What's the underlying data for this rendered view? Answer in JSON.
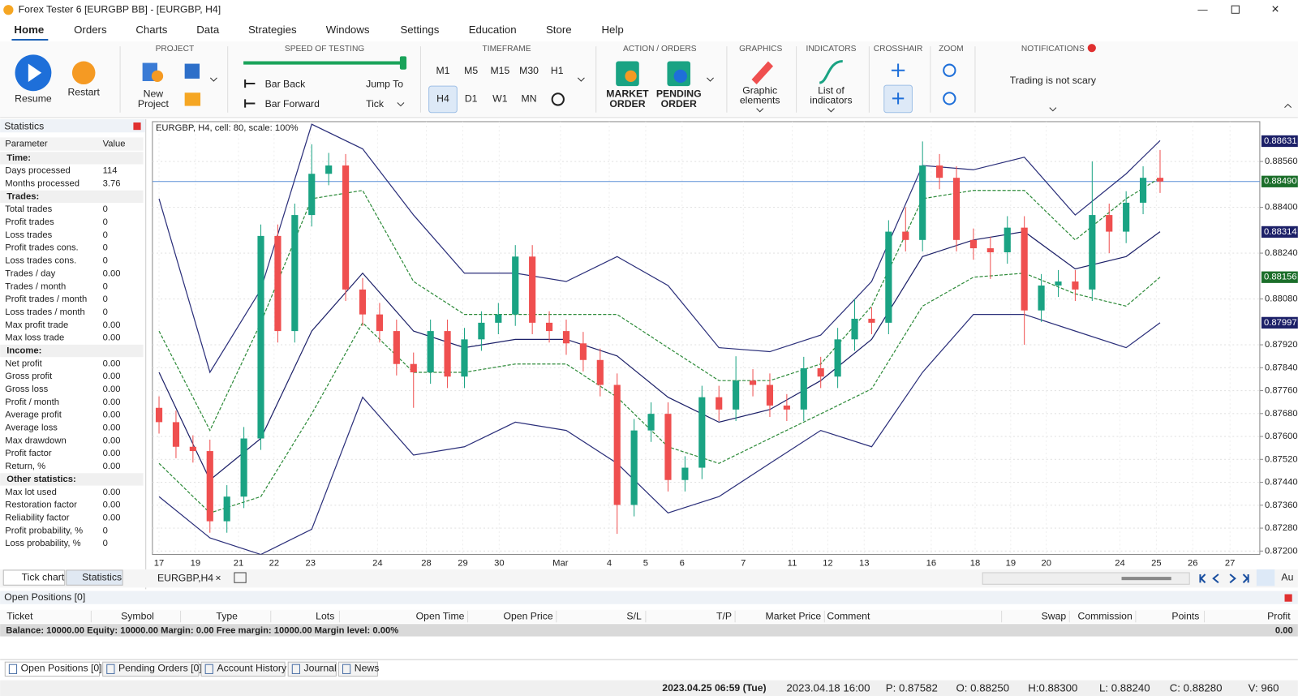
{
  "title_bar": "Forex Tester 6  [EURGBP BB] - [EURGBP, H4]",
  "menu": [
    "Home",
    "Orders",
    "Charts",
    "Data",
    "Strategies",
    "Windows",
    "Settings",
    "Education",
    "Store",
    "Help"
  ],
  "ribbon": {
    "resume": "Resume",
    "restart": "Restart",
    "project": "PROJECT",
    "new_project": [
      "New",
      "Project"
    ],
    "speed": "SPEED OF TESTING",
    "bar_back": "Bar Back",
    "bar_forward": "Bar Forward",
    "jump_to": "Jump To",
    "tick": "Tick",
    "timeframe": "TIMEFRAME",
    "timeframes": [
      "M1",
      "M5",
      "M15",
      "M30",
      "H1",
      "H4",
      "D1",
      "W1",
      "MN"
    ],
    "action": "ACTION / ORDERS",
    "market_order": [
      "MARKET",
      "ORDER"
    ],
    "pending_order": [
      "PENDING",
      "ORDER"
    ],
    "graphics": "GRAPHICS",
    "graphic_elements": [
      "Graphic",
      "elements"
    ],
    "indicators": "INDICATORS",
    "list_of_indicators": [
      "List of",
      "indicators"
    ],
    "crosshair": "CROSSHAIR",
    "zoom": "ZOOM",
    "notifications": "NOTIFICATIONS",
    "notification_text": "Trading is not scary"
  },
  "statistics": {
    "title": "Statistics",
    "header": [
      "Parameter",
      "Value"
    ],
    "rows": [
      [
        "Time:"
      ],
      [
        "Days processed",
        "114"
      ],
      [
        "Months processed",
        "3.76"
      ],
      [
        "Trades:"
      ],
      [
        "Total trades",
        "0"
      ],
      [
        "Profit trades",
        "0"
      ],
      [
        "Loss trades",
        "0"
      ],
      [
        "Profit trades cons.",
        "0"
      ],
      [
        "Loss trades cons.",
        "0"
      ],
      [
        "Trades / day",
        "0.00"
      ],
      [
        "Trades / month",
        "0"
      ],
      [
        "Profit trades / month",
        "0"
      ],
      [
        "Loss trades / month",
        "0"
      ],
      [
        "Max profit trade",
        "0.00"
      ],
      [
        "Max loss trade",
        "0.00"
      ],
      [
        "Income:"
      ],
      [
        "Net profit",
        "0.00"
      ],
      [
        "Gross profit",
        "0.00"
      ],
      [
        "Gross loss",
        "0.00"
      ],
      [
        "Profit / month",
        "0.00"
      ],
      [
        "Average profit",
        "0.00"
      ],
      [
        "Average loss",
        "0.00"
      ],
      [
        "Max drawdown",
        "0.00"
      ],
      [
        "Profit factor",
        "0.00"
      ],
      [
        "Return, %",
        "0.00"
      ],
      [
        "Other statistics:"
      ],
      [
        "Max lot used",
        "0.00"
      ],
      [
        "Restoration factor",
        "0.00"
      ],
      [
        "Reliability factor",
        "0.00"
      ],
      [
        "Profit probability, %",
        "0"
      ],
      [
        "Loss probability, %",
        "0"
      ]
    ]
  },
  "chart_data": {
    "type": "candlestick",
    "title": "EURGBP, H4, cell: 80, scale: 100%",
    "up_color": "#1aa383",
    "down_color": "#ef4f4f",
    "ohlc": [
      [
        0.877,
        0.8774,
        0.8761,
        0.8765
      ],
      [
        0.8765,
        0.8769,
        0.87524,
        0.87564
      ],
      [
        0.87564,
        0.87604,
        0.87509,
        0.87549
      ],
      [
        0.87549,
        0.87589,
        0.87264,
        0.87304
      ],
      [
        0.87304,
        0.8743,
        0.87264,
        0.8739
      ],
      [
        0.8739,
        0.87633,
        0.8735,
        0.87593
      ],
      [
        0.87593,
        0.8834,
        0.87553,
        0.883
      ],
      [
        0.883,
        0.8834,
        0.87928,
        0.87968
      ],
      [
        0.87968,
        0.88413,
        0.87928,
        0.88373
      ],
      [
        0.88373,
        0.8862,
        0.88333,
        0.88517
      ],
      [
        0.88517,
        0.8859,
        0.88477,
        0.88546
      ],
      [
        0.88546,
        0.88586,
        0.88073,
        0.88113
      ],
      [
        0.88113,
        0.88153,
        0.87986,
        0.88026
      ],
      [
        0.88026,
        0.88066,
        0.87928,
        0.87968
      ],
      [
        0.87968,
        0.88008,
        0.87813,
        0.87853
      ],
      [
        0.87853,
        0.87893,
        0.877,
        0.87824
      ],
      [
        0.87824,
        0.88008,
        0.87784,
        0.87968
      ],
      [
        0.87968,
        0.88008,
        0.87769,
        0.87809
      ],
      [
        0.87809,
        0.87979,
        0.87769,
        0.87939
      ],
      [
        0.87939,
        0.88037,
        0.87899,
        0.87997
      ],
      [
        0.87997,
        0.88066,
        0.87957,
        0.88026
      ],
      [
        0.88026,
        0.88268,
        0.87986,
        0.88228
      ],
      [
        0.88228,
        0.88268,
        0.87957,
        0.87997
      ],
      [
        0.87997,
        0.88037,
        0.87928,
        0.87968
      ],
      [
        0.87968,
        0.88008,
        0.87885,
        0.87925
      ],
      [
        0.87925,
        0.87965,
        0.87827,
        0.87867
      ],
      [
        0.87867,
        0.87907,
        0.8774,
        0.8778
      ],
      [
        0.8778,
        0.8782,
        0.8726,
        0.87361
      ],
      [
        0.87361,
        0.87661,
        0.87321,
        0.87621
      ],
      [
        0.87621,
        0.87719,
        0.87581,
        0.87679
      ],
      [
        0.87679,
        0.87719,
        0.87408,
        0.87448
      ],
      [
        0.87448,
        0.87531,
        0.87408,
        0.87491
      ],
      [
        0.87491,
        0.87777,
        0.87451,
        0.87737
      ],
      [
        0.87737,
        0.87777,
        0.87654,
        0.87694
      ],
      [
        0.87694,
        0.8788,
        0.87654,
        0.87795
      ],
      [
        0.87795,
        0.87835,
        0.8774,
        0.8778
      ],
      [
        0.8778,
        0.8782,
        0.87668,
        0.87708
      ],
      [
        0.87708,
        0.87748,
        0.87654,
        0.87694
      ],
      [
        0.87694,
        0.87878,
        0.87654,
        0.87838
      ],
      [
        0.87838,
        0.87878,
        0.87769,
        0.87809
      ],
      [
        0.87809,
        0.87979,
        0.87769,
        0.87939
      ],
      [
        0.87939,
        0.8808,
        0.87899,
        0.88011
      ],
      [
        0.88011,
        0.88051,
        0.87957,
        0.87997
      ],
      [
        0.87997,
        0.88355,
        0.87957,
        0.88315
      ],
      [
        0.88315,
        0.884,
        0.88246,
        0.88286
      ],
      [
        0.88286,
        0.8863,
        0.88246,
        0.88546
      ],
      [
        0.88546,
        0.88586,
        0.88463,
        0.88503
      ],
      [
        0.88503,
        0.88543,
        0.88246,
        0.88286
      ],
      [
        0.88286,
        0.88326,
        0.88217,
        0.88257
      ],
      [
        0.88257,
        0.88297,
        0.8815,
        0.88243
      ],
      [
        0.88243,
        0.88369,
        0.88203,
        0.88329
      ],
      [
        0.88329,
        0.88369,
        0.8792,
        0.8804
      ],
      [
        0.8804,
        0.88167,
        0.88,
        0.88127
      ],
      [
        0.88127,
        0.88181,
        0.88087,
        0.88141
      ],
      [
        0.88141,
        0.88181,
        0.88073,
        0.88113
      ],
      [
        0.88113,
        0.8856,
        0.88073,
        0.88373
      ],
      [
        0.88373,
        0.88413,
        0.8824,
        0.88315
      ],
      [
        0.88315,
        0.88456,
        0.88275,
        0.88416
      ],
      [
        0.88416,
        0.88543,
        0.88376,
        0.88503
      ],
      [
        0.88503,
        0.886,
        0.8845,
        0.8849
      ]
    ],
    "band_x": [
      0,
      3,
      6,
      9,
      12,
      15,
      18,
      21,
      24,
      27,
      30,
      33,
      36,
      39,
      42,
      45,
      48,
      51,
      54,
      57,
      59
    ],
    "bands": [
      {
        "color": "#2b2f7a",
        "dashed": false,
        "values": [
          0.8843,
          0.87824,
          0.88113,
          0.8869,
          0.88604,
          0.88373,
          0.8817,
          0.8817,
          0.88141,
          0.88228,
          0.88127,
          0.8791,
          0.87896,
          0.87954,
          0.88141,
          0.88546,
          0.88531,
          0.88575,
          0.88373,
          0.88517,
          0.88633
        ]
      },
      {
        "color": "#1c2068",
        "dashed": false,
        "values": [
          0.87824,
          0.87448,
          0.87593,
          0.87968,
          0.8817,
          0.87968,
          0.8791,
          0.87939,
          0.87939,
          0.87881,
          0.87737,
          0.8765,
          0.87694,
          0.87795,
          0.87939,
          0.88228,
          0.88286,
          0.88315,
          0.88185,
          0.88228,
          0.88315
        ]
      },
      {
        "color": "#2b2f7a",
        "dashed": false,
        "values": [
          0.8739,
          0.87246,
          0.87188,
          0.87276,
          0.87737,
          0.87535,
          0.87564,
          0.8765,
          0.87621,
          0.87506,
          0.87333,
          0.8739,
          0.87506,
          0.87621,
          0.87564,
          0.87824,
          0.88026,
          0.88026,
          0.87968,
          0.8791,
          0.87997
        ]
      },
      {
        "color": "#2e8b3a",
        "dashed": true,
        "values": [
          0.87968,
          0.87621,
          0.87997,
          0.8843,
          0.88459,
          0.88141,
          0.88026,
          0.88026,
          0.88026,
          0.88026,
          0.8791,
          0.87795,
          0.87795,
          0.87853,
          0.88055,
          0.8843,
          0.88459,
          0.88459,
          0.88286,
          0.8843,
          0.88503
        ]
      },
      {
        "color": "#2e8b3a",
        "dashed": true,
        "values": [
          0.87506,
          0.87333,
          0.8739,
          0.87679,
          0.87997,
          0.87824,
          0.87824,
          0.87853,
          0.87853,
          0.87737,
          0.87564,
          0.87506,
          0.87593,
          0.87679,
          0.87766,
          0.88055,
          0.88156,
          0.8817,
          0.88098,
          0.88055,
          0.88156
        ]
      }
    ],
    "ylim": [
      0.87188,
      0.88699
    ],
    "yticks": [
      {
        "value": 0.8856,
        "label": "0.88560"
      },
      {
        "value": 0.884,
        "label": "0.88400"
      },
      {
        "value": 0.8824,
        "label": "0.88240"
      },
      {
        "value": 0.8808,
        "label": "0.88080"
      },
      {
        "value": 0.8792,
        "label": "0.87920"
      },
      {
        "value": 0.8784,
        "label": "0.87840"
      },
      {
        "value": 0.8776,
        "label": "0.87760"
      },
      {
        "value": 0.8768,
        "label": "0.87680"
      },
      {
        "value": 0.876,
        "label": "0.87600"
      },
      {
        "value": 0.8752,
        "label": "0.87520"
      },
      {
        "value": 0.8744,
        "label": "0.87440"
      },
      {
        "value": 0.8736,
        "label": "0.87360"
      },
      {
        "value": 0.8728,
        "label": "0.87280"
      },
      {
        "value": 0.872,
        "label": "0.87200"
      }
    ],
    "price_tags": [
      0.88631,
      {
        "value": 0.8849,
        "label": "0.88490"
      },
      0.88314,
      0.88156,
      0.87997
    ],
    "price_tag_colors": [
      "#1c2068",
      "#1b6e2a",
      "#1c2068",
      "#1b6e2a",
      "#1c2068"
    ],
    "current_price_tag": 1,
    "grid": true,
    "x_labels": [
      "17",
      "19",
      "21",
      "22",
      "23",
      "24",
      "28",
      "29",
      "30",
      "Mar",
      "4",
      "5",
      "6",
      "7",
      "11",
      "12",
      "13",
      "16",
      "18",
      "19",
      "20",
      "24",
      "25",
      "26",
      "27"
    ]
  },
  "chart_tabs": [
    "Tick chart",
    "Statistics"
  ],
  "chart_tab": "EURGBP,H4",
  "positions": {
    "title": "Open Positions [0]",
    "columns": [
      "Ticket",
      "Symbol",
      "Type",
      "Lots",
      "Open Time",
      "Open Price",
      "S/L",
      "T/P",
      "Market Price",
      "Comment",
      "Swap",
      "Commission",
      "Points",
      "Profit"
    ],
    "balance": "Balance: 10000.00 Equity: 10000.00 Margin: 0.00 Free margin: 10000.00 Margin level: 0.00%",
    "balance_profit": "0.00"
  },
  "bottom_tabs": [
    "Open Positions [0]",
    "Pending Orders [0]",
    "Account History",
    "Journal",
    "News"
  ],
  "status": [
    "2023.04.25 06:59 (Tue)",
    "2023.04.18 16:00",
    "P: 0.87582",
    "O: 0.88250",
    "H:0.88300",
    "L: 0.88240",
    "C: 0.88280",
    "V: 960"
  ],
  "auto": "Au"
}
